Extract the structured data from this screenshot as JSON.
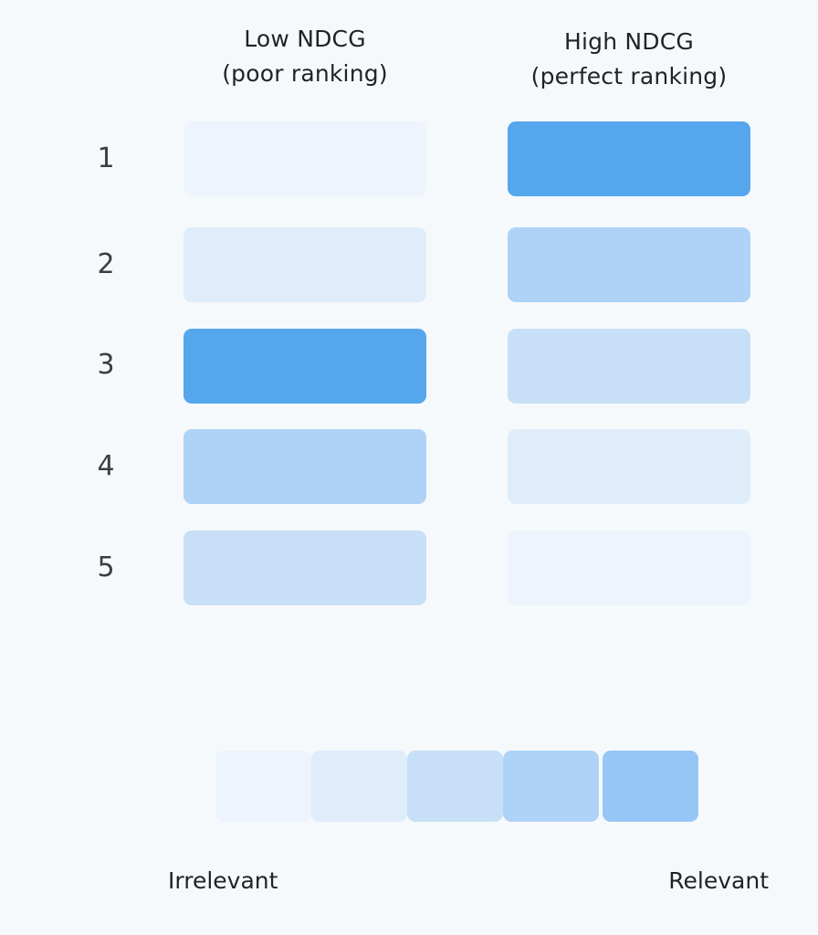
{
  "columns": [
    {
      "id": "low",
      "title_line1": "Low NDCG",
      "title_line2": "(poor ranking)",
      "relevance": [
        0,
        1,
        4,
        3,
        2
      ]
    },
    {
      "id": "high",
      "title_line1": "High NDCG",
      "title_line2": "(perfect ranking)",
      "relevance": [
        4,
        3,
        2,
        1,
        0
      ]
    }
  ],
  "ranks": [
    "1",
    "2",
    "3",
    "4",
    "5"
  ],
  "relevance_colors": [
    "#edf4fd",
    "#dfecfa",
    "#c7e0f7",
    "#aed3f7",
    "#96c6f5"
  ],
  "top_relevance_color": "#55a6ed",
  "legend": {
    "levels": [
      0,
      1,
      2,
      3,
      4
    ],
    "left_label": "Irrelevant",
    "right_label": "Relevant"
  }
}
